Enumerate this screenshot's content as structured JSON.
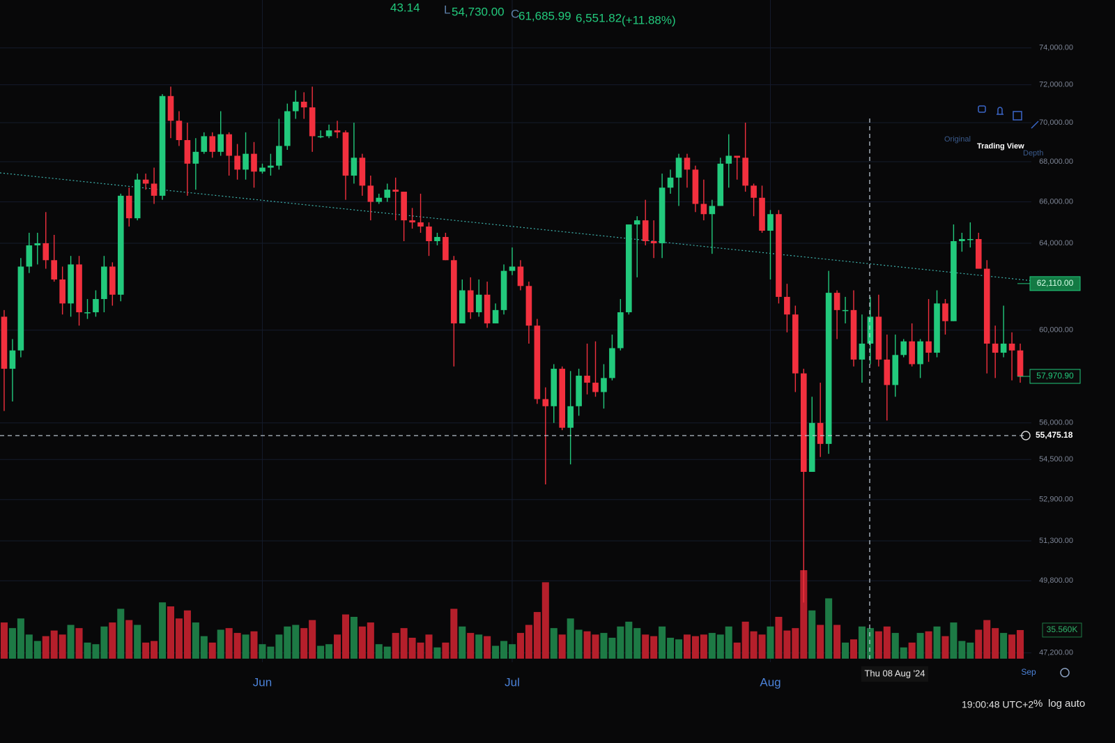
{
  "chart_data": {
    "type": "candlestick",
    "header": [
      "43.14",
      "L",
      "54,730.00",
      "C",
      "61,685.99",
      "6,551.82",
      "(+11.88%)"
    ],
    "tabs": [
      "Original",
      "Trading View",
      "Depth"
    ],
    "categories": [
      null,
      null,
      null,
      null,
      null,
      null,
      null,
      null,
      null,
      null,
      null,
      null,
      null,
      null,
      null,
      null,
      null,
      null,
      null,
      null,
      null,
      null,
      null,
      null,
      null,
      null,
      null,
      null,
      null,
      null,
      null,
      "Jun",
      null,
      null,
      null,
      null,
      null,
      null,
      null,
      null,
      null,
      null,
      null,
      null,
      null,
      null,
      null,
      null,
      null,
      null,
      null,
      null,
      null,
      null,
      null,
      null,
      null,
      null,
      null,
      null,
      null,
      "Jul",
      null,
      null,
      null,
      null,
      null,
      null,
      null,
      null,
      null,
      null,
      null,
      null,
      null,
      null,
      null,
      null,
      null,
      null,
      null,
      null,
      null,
      null,
      null,
      null,
      null,
      null,
      null,
      null,
      null,
      null,
      "Aug",
      null,
      null,
      null,
      null,
      null,
      null,
      null,
      null,
      null,
      null,
      null,
      null,
      null,
      null,
      null,
      null,
      null,
      null,
      null,
      null,
      null,
      null,
      null,
      null,
      null,
      null,
      null,
      null,
      null,
      null
    ],
    "x_end_label": "Sep",
    "open": [
      60600,
      58300,
      59100,
      62900,
      63900,
      64000,
      63200,
      62300,
      61200,
      63000,
      60800,
      60800,
      61400,
      62900,
      61600,
      66300,
      65200,
      67100,
      66900,
      66300,
      71400,
      70100,
      69100,
      67900,
      68500,
      69300,
      68500,
      69400,
      68300,
      67600,
      68400,
      67500,
      67700,
      67800,
      68800,
      70600,
      71100,
      70800,
      69300,
      69300,
      69600,
      69500,
      67300,
      68200,
      66800,
      66000,
      66200,
      66600,
      66500,
      65100,
      65000,
      64800,
      64100,
      64300,
      63200,
      60300,
      61800,
      60800,
      61600,
      60300,
      60900,
      62700,
      62900,
      62000,
      60200,
      57000,
      56700,
      58300,
      55800,
      56700,
      58000,
      57700,
      57300,
      57900,
      59200,
      60800,
      64900,
      65100,
      64100,
      64000,
      66700,
      67200,
      68200,
      67600,
      65900,
      65400,
      65800,
      67900,
      68300,
      68200,
      66800,
      66200,
      64600,
      65400,
      61500,
      60700,
      58100,
      54000,
      56000,
      55134.17,
      61685.99,
      60900,
      60900,
      58700,
      59400,
      60600,
      58700,
      57600,
      58900,
      59500,
      58500,
      59500,
      59000,
      61200,
      60400,
      64100,
      64200,
      64200,
      62800,
      59400,
      59000,
      59400,
      59100
    ],
    "high": [
      60900,
      59600,
      63300,
      64500,
      64500,
      65500,
      64400,
      62900,
      63400,
      63400,
      61400,
      61800,
      63400,
      63100,
      66400,
      66700,
      67400,
      67400,
      67700,
      71500,
      71900,
      70600,
      70000,
      69200,
      69500,
      69500,
      70600,
      69500,
      68900,
      69500,
      69000,
      67900,
      68400,
      70200,
      71000,
      71700,
      71600,
      71900,
      69600,
      69900,
      70100,
      69600,
      70000,
      68400,
      67300,
      66400,
      66900,
      67200,
      66500,
      65700,
      66400,
      65000,
      64500,
      64500,
      63400,
      62300,
      62400,
      62300,
      62200,
      61200,
      63000,
      63800,
      63200,
      62200,
      60500,
      57500,
      58500,
      58400,
      58200,
      58300,
      59400,
      59500,
      58500,
      59800,
      61400,
      64900,
      65300,
      66100,
      65100,
      67400,
      67600,
      68400,
      68400,
      67800,
      67100,
      66100,
      68200,
      69400,
      68300,
      70000,
      66900,
      66800,
      65600,
      65600,
      62100,
      61100,
      58300,
      57100,
      57700,
      62700,
      61800,
      61500,
      61800,
      60700,
      61500,
      61600,
      59800,
      59800,
      59600,
      60300,
      59600,
      61400,
      61800,
      61400,
      64900,
      64500,
      65000,
      64500,
      63200,
      60200,
      61100,
      59900,
      59400
    ],
    "low": [
      56500,
      56900,
      58800,
      62600,
      63000,
      62800,
      62200,
      60700,
      60600,
      60200,
      60500,
      60600,
      60800,
      61100,
      61300,
      64800,
      65100,
      66600,
      65900,
      66100,
      69200,
      68800,
      66300,
      66600,
      68400,
      68200,
      68300,
      67300,
      67100,
      67100,
      66700,
      67400,
      67300,
      67600,
      68600,
      70200,
      70200,
      68500,
      69200,
      69200,
      69200,
      66100,
      66900,
      66300,
      65100,
      65900,
      66000,
      65100,
      64100,
      64700,
      64500,
      63400,
      63900,
      63200,
      58400,
      60300,
      60500,
      60600,
      60100,
      60300,
      60700,
      62500,
      61800,
      59400,
      56800,
      53500,
      56000,
      55700,
      54300,
      56300,
      57200,
      57100,
      56600,
      57800,
      59100,
      60700,
      62400,
      63900,
      63300,
      63300,
      66400,
      65800,
      66700,
      65500,
      65100,
      63500,
      65800,
      66700,
      67100,
      66500,
      65300,
      64500,
      62300,
      61200,
      59900,
      57300,
      49000,
      54000,
      54600,
      54730,
      59600,
      60300,
      58400,
      57700,
      58500,
      58400,
      56100,
      57100,
      58800,
      58400,
      57900,
      58600,
      58800,
      59800,
      60400,
      63600,
      63800,
      62800,
      58100,
      57900,
      58800,
      57800,
      57700
    ],
    "close": [
      58300,
      59100,
      62900,
      63900,
      64000,
      63200,
      62300,
      61200,
      63000,
      60800,
      60800,
      61400,
      62900,
      61600,
      66300,
      65200,
      67100,
      66900,
      66300,
      71400,
      70100,
      69100,
      67900,
      68500,
      69300,
      68500,
      69400,
      68300,
      67600,
      68400,
      67500,
      67700,
      67800,
      68800,
      70600,
      71100,
      70800,
      69300,
      69300,
      69600,
      69500,
      67300,
      68200,
      66800,
      66000,
      66200,
      66600,
      66500,
      65100,
      65000,
      64800,
      64100,
      64300,
      63200,
      60300,
      61800,
      60800,
      61600,
      60300,
      60900,
      62700,
      62900,
      62000,
      60200,
      57000,
      56700,
      58300,
      55800,
      56700,
      58000,
      57700,
      57300,
      57900,
      59200,
      60800,
      64900,
      65100,
      64100,
      64000,
      66700,
      67200,
      68200,
      67600,
      65900,
      65400,
      65800,
      67900,
      68300,
      68200,
      66800,
      66200,
      64600,
      65400,
      61500,
      60700,
      58100,
      54000,
      56000,
      55134.17,
      61685.99,
      60900,
      60900,
      58700,
      59400,
      60600,
      58700,
      57600,
      58900,
      59500,
      58500,
      59500,
      59000,
      61200,
      60400,
      64100,
      64200,
      64200,
      62800,
      59400,
      59000,
      59400,
      59100,
      57970.9
    ],
    "volume": [
      45,
      38,
      50,
      30,
      22,
      28,
      35,
      30,
      42,
      38,
      20,
      18,
      40,
      45,
      62,
      48,
      42,
      20,
      22,
      70,
      65,
      50,
      60,
      45,
      28,
      20,
      36,
      38,
      32,
      30,
      34,
      18,
      15,
      30,
      40,
      42,
      38,
      48,
      16,
      18,
      30,
      55,
      52,
      40,
      45,
      18,
      15,
      32,
      38,
      26,
      20,
      30,
      14,
      20,
      62,
      40,
      32,
      30,
      28,
      16,
      22,
      18,
      32,
      42,
      58,
      95,
      38,
      30,
      50,
      36,
      34,
      30,
      32,
      26,
      40,
      46,
      38,
      30,
      28,
      40,
      26,
      24,
      30,
      28,
      30,
      32,
      30,
      40,
      20,
      46,
      34,
      30,
      40,
      52,
      35,
      38,
      110,
      60,
      42,
      75,
      42,
      20,
      24,
      40,
      38,
      34,
      40,
      32,
      14,
      20,
      32,
      34,
      40,
      28,
      45,
      22,
      20,
      36,
      48,
      38,
      32,
      30,
      35.56
    ],
    "up_color": "#22c97c",
    "down_color": "#f2303e",
    "volume_up_color": "#1d7a45",
    "volume_down_color": "#b51f2b",
    "log_scale": true,
    "grid": true,
    "ylim": [
      47000,
      75500
    ],
    "yticks": [
      {
        "value": 74000,
        "label": "74,000.00"
      },
      {
        "value": 72000,
        "label": "72,000.00"
      },
      {
        "value": 70000,
        "label": "70,000.00"
      },
      {
        "value": 68000,
        "label": "68,000.00"
      },
      {
        "value": 66000,
        "label": "66,000.00"
      },
      {
        "value": 64000,
        "label": "64,000.00"
      },
      {
        "value": 60000,
        "label": "60,000.00"
      },
      {
        "value": 56000,
        "label": "56,000.00"
      },
      {
        "value": 54500,
        "label": "54,500.00"
      },
      {
        "value": 52900,
        "label": "52,900.00"
      },
      {
        "value": 51300,
        "label": "51,300.00"
      },
      {
        "value": 49800,
        "label": "49,800.00"
      },
      {
        "value": 47200,
        "label": "47,200.00"
      }
    ],
    "vlim": [
      0,
      130
    ],
    "price_labels": [
      {
        "value": 62110,
        "label": "62,110.00"
      },
      {
        "value": 57970.9,
        "label": "57,970.90"
      }
    ],
    "volume_label": {
      "value": 35.56,
      "label": "35.560K"
    },
    "crosshair": {
      "date": "Thu 08 Aug '24",
      "price": {
        "value": 55475.18,
        "label": "55,475.18"
      }
    }
  },
  "ui": {
    "clock": "19:00:48 UTC+2",
    "buttons": [
      "%",
      "log",
      "auto"
    ]
  }
}
